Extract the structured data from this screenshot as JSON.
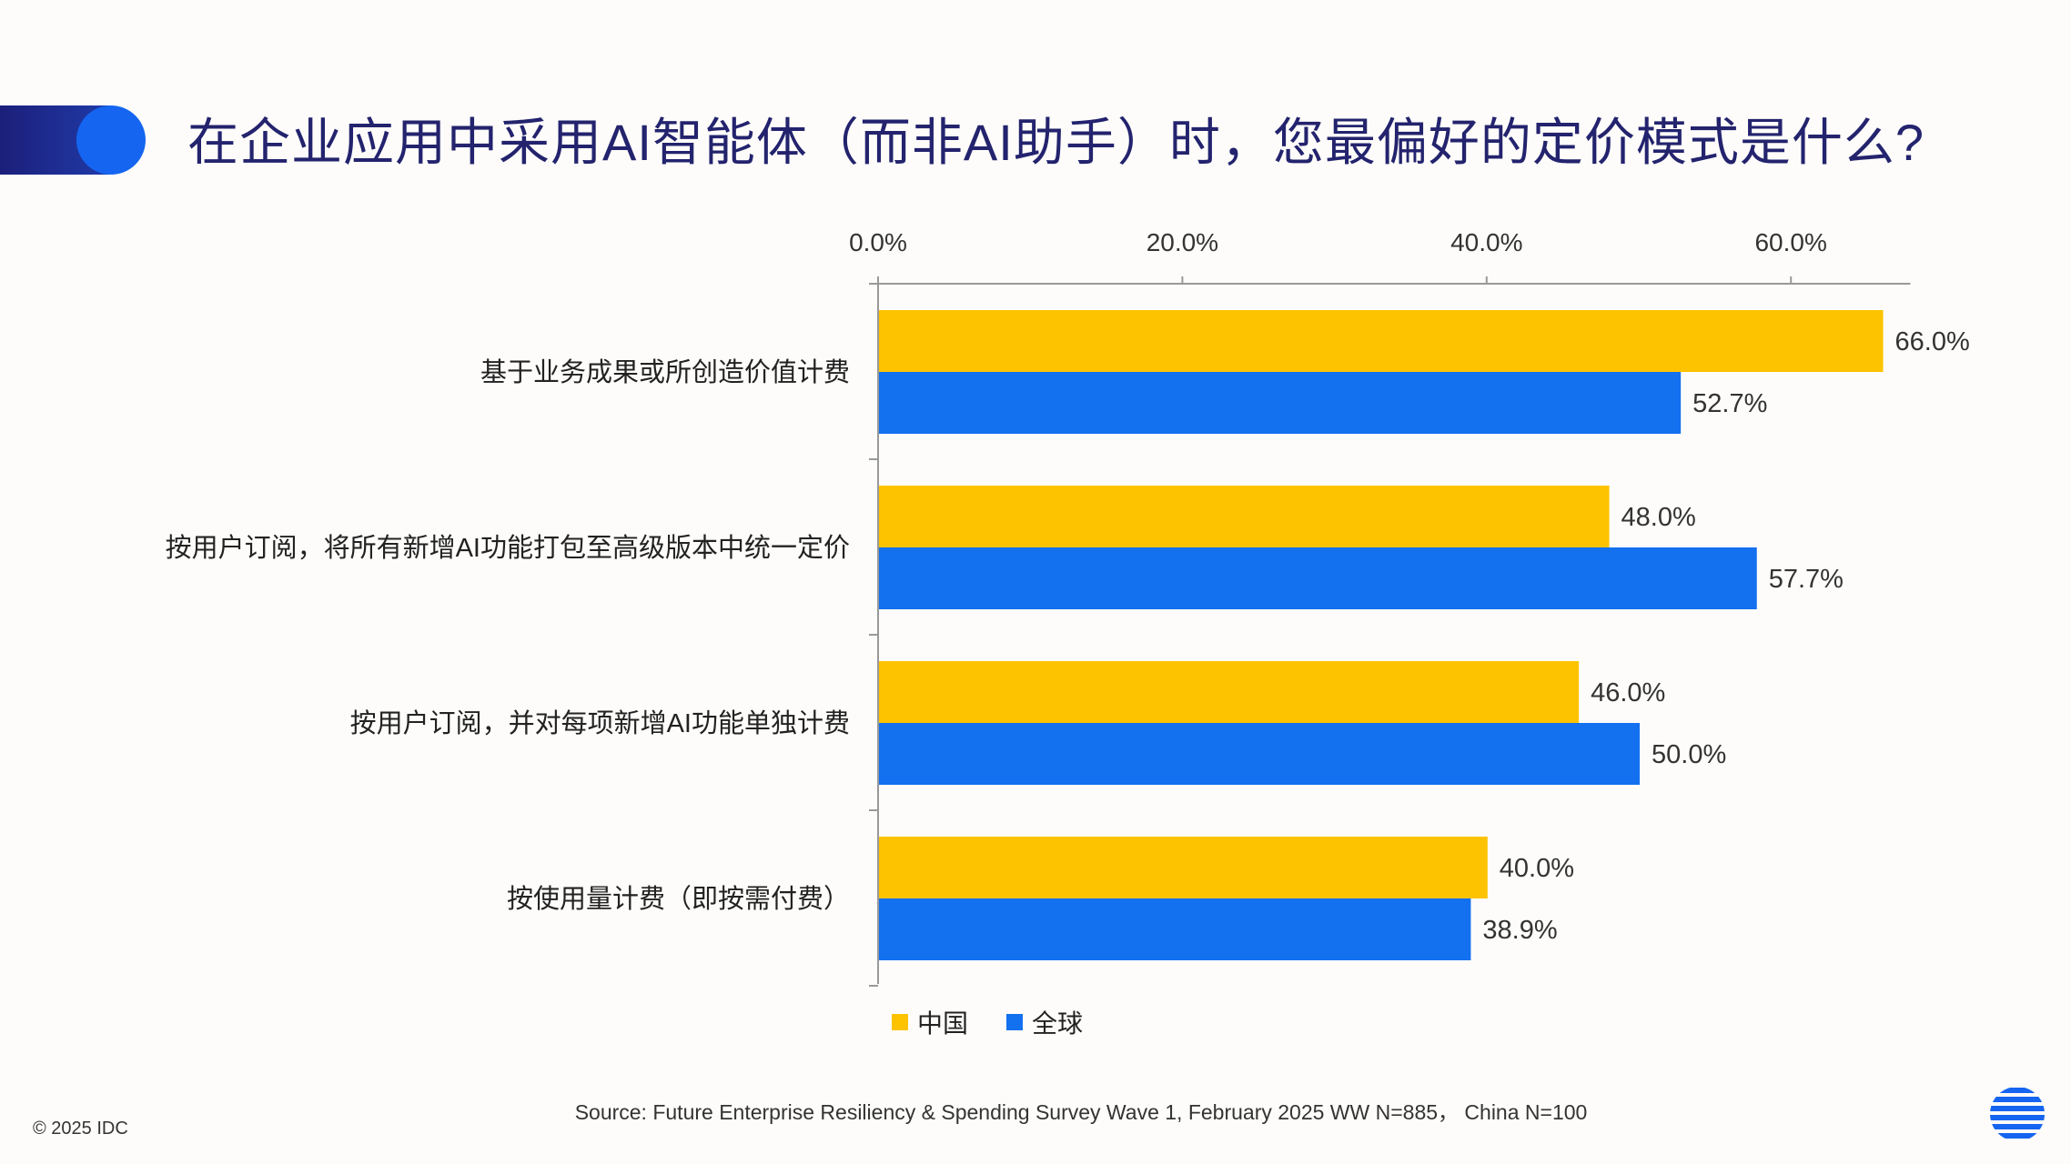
{
  "title": "在企业应用中采用AI智能体（而非AI助手）时，您最偏好的定价模式是什么?",
  "chart_data": {
    "type": "bar",
    "orientation": "horizontal",
    "categories": [
      "基于业务成果或所创造价值计费",
      "按用户订阅，将所有新增AI功能打包至高级版本中统一定价",
      "按用户订阅，并对每项新增AI功能单独计费",
      "按使用量计费（即按需付费）"
    ],
    "series": [
      {
        "name": "中国",
        "color": "#fdc300",
        "values": [
          66.0,
          48.0,
          46.0,
          40.0
        ],
        "labels": [
          "66.0%",
          "48.0%",
          "46.0%",
          "40.0%"
        ]
      },
      {
        "name": "全球",
        "color": "#1370ef",
        "values": [
          52.7,
          57.7,
          50.0,
          38.9
        ],
        "labels": [
          "52.7%",
          "57.7%",
          "50.0%",
          "38.9%"
        ]
      }
    ],
    "xlim": [
      0,
      70
    ],
    "xticks": [
      0,
      20,
      40,
      60
    ],
    "xtick_labels": [
      "0.0%",
      "20.0%",
      "40.0%",
      "60.0%"
    ],
    "legend_position": "bottom"
  },
  "source": "Source: Future Enterprise Resiliency & Spending Survey Wave 1, February 2025 WW N=885， China N=100",
  "copyright": "© 2025 IDC",
  "icons": {
    "logo": "idc-globe-logo-icon"
  }
}
